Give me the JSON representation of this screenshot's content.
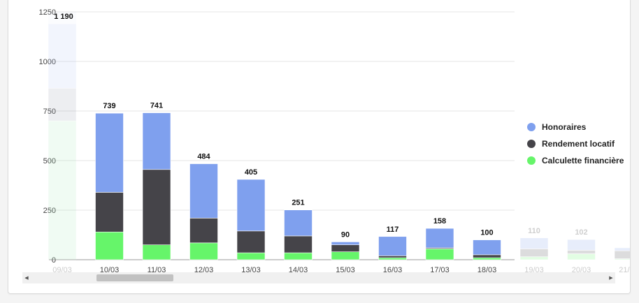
{
  "chart_data": {
    "type": "bar",
    "stacked": true,
    "categories": [
      "09/03",
      "10/03",
      "11/03",
      "12/03",
      "13/03",
      "14/03",
      "15/03",
      "16/03",
      "17/03",
      "18/03",
      "19/03",
      "20/03",
      "21/03"
    ],
    "series": [
      {
        "name": "Calculette financière",
        "color": "#66f56a",
        "values": [
          700,
          140,
          75,
          85,
          35,
          35,
          40,
          10,
          55,
          10,
          15,
          30,
          5
        ]
      },
      {
        "name": "Rendement locatif",
        "color": "#454449",
        "values": [
          165,
          200,
          380,
          125,
          110,
          85,
          35,
          10,
          5,
          15,
          40,
          18,
          40
        ]
      },
      {
        "name": "Honoraires",
        "color": "#7fa0ee",
        "values": [
          325,
          399,
          286,
          274,
          260,
          131,
          15,
          97,
          98,
          75,
          55,
          54,
          15
        ]
      }
    ],
    "totals": [
      "1 190",
      "739",
      "741",
      "484",
      "405",
      "251",
      "90",
      "117",
      "158",
      "100",
      "110",
      "102",
      ""
    ],
    "y_ticks": [
      "0",
      "250",
      "500",
      "750",
      "1000",
      "1250"
    ],
    "ylim": [
      0,
      1250
    ],
    "faded_categories": [
      0,
      10,
      11,
      12
    ],
    "grid": true,
    "legend_position": "right"
  }
}
